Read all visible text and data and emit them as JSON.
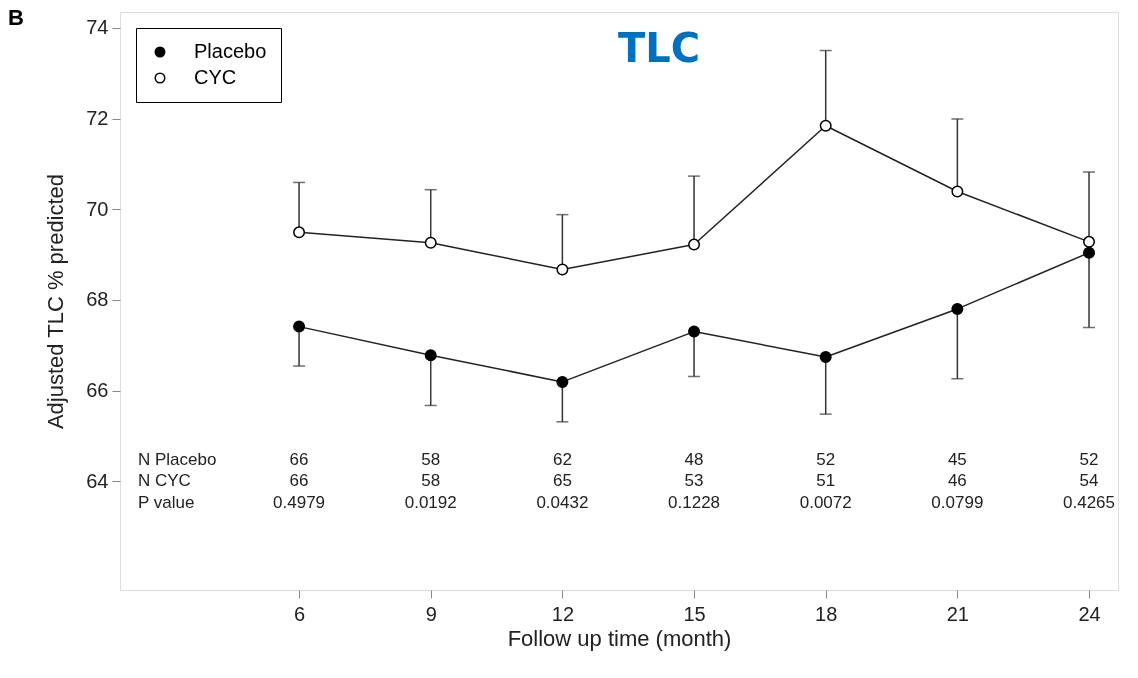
{
  "chart_data": {
    "type": "line",
    "title": "TLC",
    "xlabel": "Follow up time (month)",
    "ylabel": "Adjusted TLC % predicted",
    "x": [
      6,
      9,
      12,
      15,
      18,
      21,
      24
    ],
    "series": [
      {
        "name": "Placebo",
        "color": "#000000",
        "values": [
          67.41,
          66.78,
          66.19,
          67.3,
          66.74,
          67.8,
          69.04
        ],
        "errors": [
          [
            66.54,
            67.41
          ],
          [
            65.67,
            66.78
          ],
          [
            65.31,
            66.19
          ],
          [
            66.31,
            67.3
          ],
          [
            65.48,
            66.74
          ],
          [
            66.26,
            67.8
          ],
          [
            67.39,
            69.04
          ]
        ]
      },
      {
        "name": "CYC",
        "color": "#000000",
        "values": [
          69.49,
          69.26,
          68.67,
          69.22,
          71.84,
          70.39,
          69.28
        ],
        "errors": [
          [
            69.49,
            70.59
          ],
          [
            69.26,
            70.43
          ],
          [
            68.67,
            69.88
          ],
          [
            69.22,
            70.73
          ],
          [
            71.84,
            73.5
          ],
          [
            70.39,
            71.99
          ],
          [
            69.28,
            70.82
          ]
        ]
      }
    ],
    "xlim": [
      1.92,
      24.66
    ],
    "ylim": [
      61.6,
      74.35
    ],
    "xticks": [
      6,
      9,
      12,
      15,
      18,
      21,
      24
    ],
    "yticks": [
      64,
      66,
      68,
      70,
      72,
      74
    ],
    "grid": false,
    "legend": "top left",
    "marker": "circle",
    "line_style": "solid",
    "annotations": [
      "B",
      "N Placebo",
      "N CYC",
      "P value",
      "66",
      "58",
      "62",
      "48",
      "52",
      "45",
      "52",
      "66",
      "58",
      "65",
      "53",
      "51",
      "46",
      "54",
      "0.4979",
      "0.0192",
      "0.0432",
      "0.1228",
      "0.0072",
      "0.0799",
      "0.4265"
    ]
  }
}
